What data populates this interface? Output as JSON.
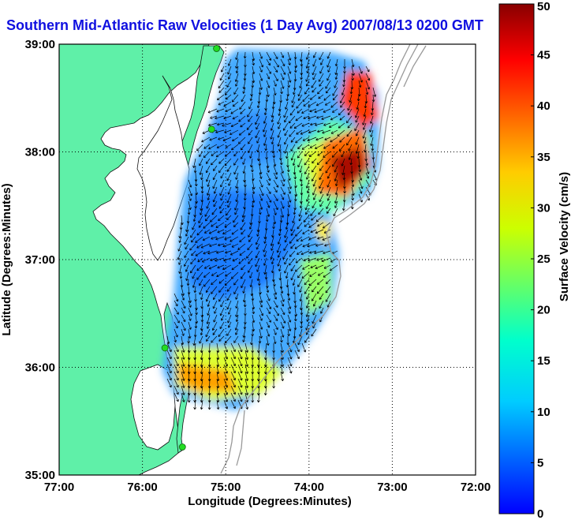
{
  "title": "Southern Mid-Atlantic Raw Velocities (1 Day Avg) 2007/08/13 0200 GMT",
  "map": {
    "xlabel": "Longitude (Degrees:Minutes)",
    "ylabel": "Latitude (Degrees:Minutes)",
    "xlim": [
      -77,
      -72
    ],
    "ylim": [
      35,
      39
    ],
    "xticks": [
      {
        "value": -77,
        "label": "77:00"
      },
      {
        "value": -76,
        "label": "76:00"
      },
      {
        "value": -75,
        "label": "75:00"
      },
      {
        "value": -74,
        "label": "74:00"
      },
      {
        "value": -73,
        "label": "73:00"
      },
      {
        "value": -72,
        "label": "72:00"
      }
    ],
    "yticks": [
      {
        "value": 35,
        "label": "35:00"
      },
      {
        "value": 36,
        "label": "36:00"
      },
      {
        "value": 37,
        "label": "37:00"
      },
      {
        "value": 38,
        "label": "38:00"
      },
      {
        "value": 39,
        "label": "39:00"
      }
    ],
    "grid": true,
    "land_color": "#5ff0a8",
    "water_color": "#ffffff",
    "station_color": "#22dd22",
    "stations": [
      {
        "lon": -75.11,
        "lat": 38.96
      },
      {
        "lon": -75.17,
        "lat": 38.21
      },
      {
        "lon": -75.73,
        "lat": 36.18
      },
      {
        "lon": -75.52,
        "lat": 35.26
      }
    ]
  },
  "colorbar": {
    "label": "Surface Velocity (cm/s)",
    "min": 0,
    "max": 50,
    "colormap": "jet",
    "ticks": [
      {
        "value": 0,
        "label": "0"
      },
      {
        "value": 5,
        "label": "5"
      },
      {
        "value": 10,
        "label": "10"
      },
      {
        "value": 15,
        "label": "15"
      },
      {
        "value": 20,
        "label": "20"
      },
      {
        "value": 25,
        "label": "25"
      },
      {
        "value": 30,
        "label": "30"
      },
      {
        "value": 35,
        "label": "35"
      },
      {
        "value": 40,
        "label": "40"
      },
      {
        "value": 45,
        "label": "45"
      },
      {
        "value": 50,
        "label": "50"
      }
    ]
  }
}
